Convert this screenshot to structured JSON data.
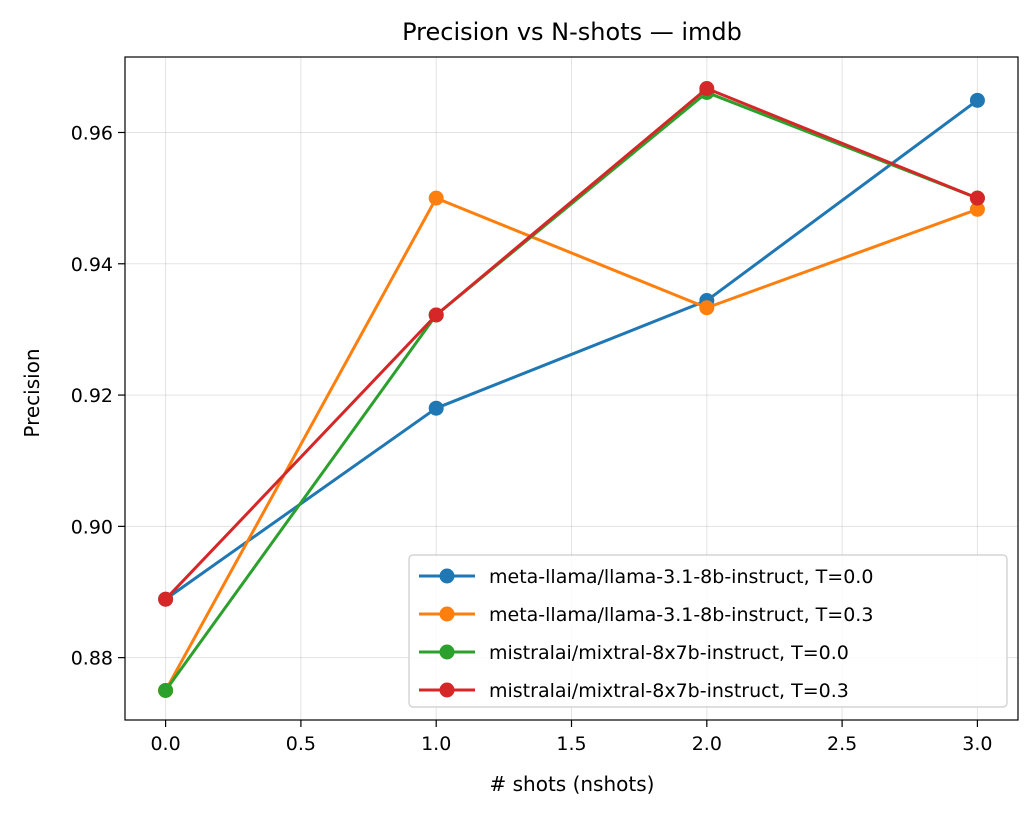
{
  "chart_data": {
    "type": "line",
    "title": "Precision vs N-shots — imdb",
    "xlabel": "# shots (nshots)",
    "ylabel": "Precision",
    "xlim": [
      -0.15,
      3.15
    ],
    "ylim": [
      0.8705,
      0.9715
    ],
    "xticks": [
      0.0,
      0.5,
      1.0,
      1.5,
      2.0,
      2.5,
      3.0
    ],
    "xtick_labels": [
      "0.0",
      "0.5",
      "1.0",
      "1.5",
      "2.0",
      "2.5",
      "3.0"
    ],
    "yticks": [
      0.88,
      0.9,
      0.92,
      0.94,
      0.96
    ],
    "ytick_labels": [
      "0.88",
      "0.90",
      "0.92",
      "0.94",
      "0.96"
    ],
    "grid": true,
    "legend_position": "lower-right",
    "x": [
      0,
      1,
      2,
      3
    ],
    "series": [
      {
        "name": "meta-llama/llama-3.1-8b-instruct, T=0.0",
        "color": "#1f77b4",
        "values": [
          0.8889,
          0.918,
          0.9344,
          0.9649
        ]
      },
      {
        "name": "meta-llama/llama-3.1-8b-instruct, T=0.3",
        "color": "#ff7f0e",
        "values": [
          0.875,
          0.95,
          0.9333,
          0.9483
        ]
      },
      {
        "name": "mistralai/mixtral-8x7b-instruct, T=0.0",
        "color": "#2ca02c",
        "values": [
          0.875,
          0.9322,
          0.9661,
          0.95
        ]
      },
      {
        "name": "mistralai/mixtral-8x7b-instruct, T=0.3",
        "color": "#d62728",
        "values": [
          0.8889,
          0.9322,
          0.9667,
          0.95
        ]
      }
    ]
  }
}
